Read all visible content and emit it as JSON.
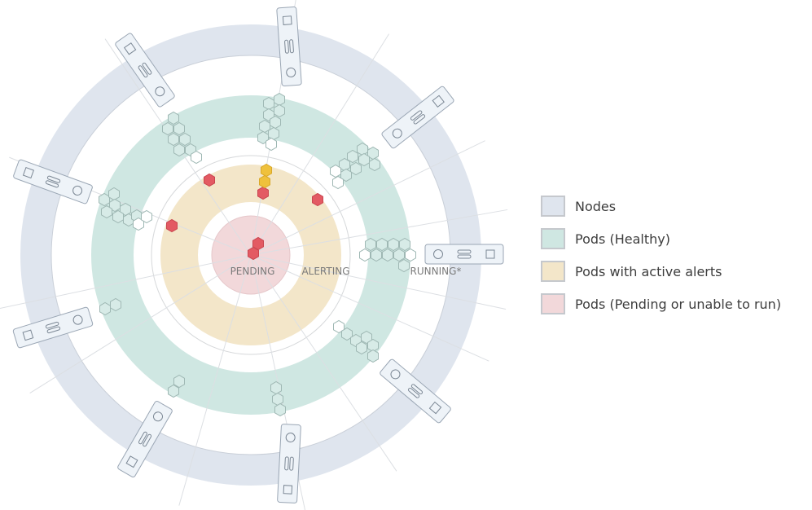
{
  "legend": {
    "items": [
      {
        "label": "Nodes",
        "color": "#dfe5ee",
        "name": "legend-item-nodes"
      },
      {
        "label": "Pods (Healthy)",
        "color": "#cfe7e2",
        "name": "legend-item-pods-healthy"
      },
      {
        "label": "Pods with active alerts",
        "color": "#f3e6c9",
        "name": "legend-item-pods-alerts"
      },
      {
        "label": "Pods (Pending or unable to run)",
        "color": "#f2d8da",
        "name": "legend-item-pods-pending"
      }
    ]
  },
  "rings": {
    "pending": "PENDING",
    "alerting": "ALERTING",
    "running": "RUNNING*"
  },
  "colors": {
    "node_ring": "#dfe5ee",
    "running_ring": "#cfe7e2",
    "alerting_ring": "#f3e6c9",
    "pending_disc": "#f2d8da",
    "pod_alert": "#e35a63",
    "pod_warning": "#efc13c",
    "pod_healthy_fill": "#d7ebe7",
    "pod_healthy_stroke": "#9fb8b4"
  },
  "icons": {
    "node": "node-card-icon",
    "pod": "hexagon-pod-icon"
  }
}
